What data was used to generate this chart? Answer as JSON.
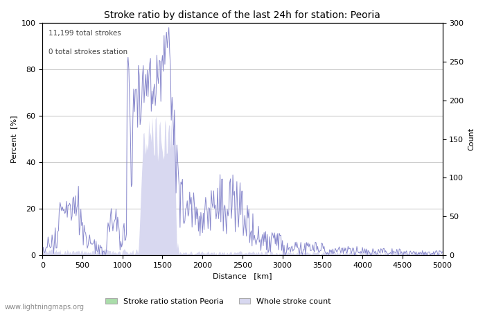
{
  "title": "Stroke ratio by distance of the last 24h for station: Peoria",
  "xlabel": "Distance   [km]",
  "ylabel_left": "Percent  [%]",
  "ylabel_right": "Count",
  "annotation_line1": "11,199 total strokes",
  "annotation_line2": "0 total strokes station",
  "watermark": "www.lightningmaps.org",
  "xlim": [
    0,
    5000
  ],
  "ylim_left": [
    0,
    100
  ],
  "ylim_right": [
    0,
    300
  ],
  "xticks": [
    0,
    500,
    1000,
    1500,
    2000,
    2500,
    3000,
    3500,
    4000,
    4500,
    5000
  ],
  "yticks_left": [
    0,
    20,
    40,
    60,
    80,
    100
  ],
  "yticks_right": [
    0,
    50,
    100,
    150,
    200,
    250,
    300
  ],
  "legend_label_green": "Stroke ratio station Peoria",
  "legend_label_blue": "Whole stroke count",
  "line_color": "#8888cc",
  "fill_color": "#d8d8f0",
  "green_fill_color": "#aaddaa",
  "background_color": "#ffffff",
  "grid_color": "#cccccc",
  "title_fontsize": 10,
  "axis_fontsize": 8,
  "tick_fontsize": 8,
  "figsize": [
    7.0,
    4.5
  ],
  "dpi": 100
}
